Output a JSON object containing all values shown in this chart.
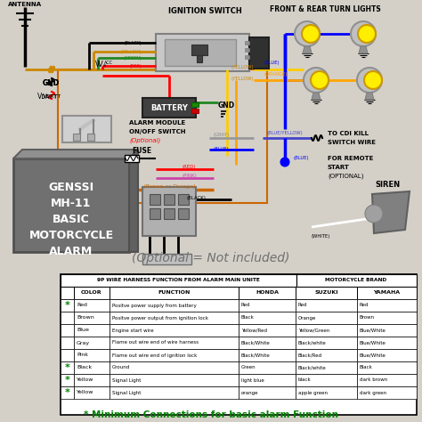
{
  "bg_color": "#d4d0c8",
  "table_header1": "9P WIRE HARNESS FUNCTION FROM ALARM MAIN UNITE",
  "table_header2": "MOTORCYCLE BRAND",
  "table_rows": [
    [
      "*",
      "Red",
      "Positve power supply from battery",
      "Red",
      "Red",
      "Red"
    ],
    [
      "",
      "Brown",
      "Positve power output from ignition lock",
      "Black",
      "Orange",
      "Brown"
    ],
    [
      "",
      "Blue",
      "Engine start wire",
      "Yellow/Red",
      "Yellow/Green",
      "Blue/White"
    ],
    [
      "",
      "Gray",
      "Flame out wire end of wire harness",
      "Black/White",
      "Black/white",
      "Blue/White"
    ],
    [
      "",
      "Pink",
      "Flame out wire end of ignition lock",
      "Black/White",
      "Black/Red",
      "Blue/White"
    ],
    [
      "*",
      "Black",
      "Ground",
      "Green",
      "Black/white",
      "Black"
    ],
    [
      "*",
      "Yellow",
      "Signal Light",
      "light blue",
      "black",
      "dark brown"
    ],
    [
      "*",
      "Yellow",
      "Signal Light",
      "orange",
      "apple green",
      "dark green"
    ]
  ]
}
